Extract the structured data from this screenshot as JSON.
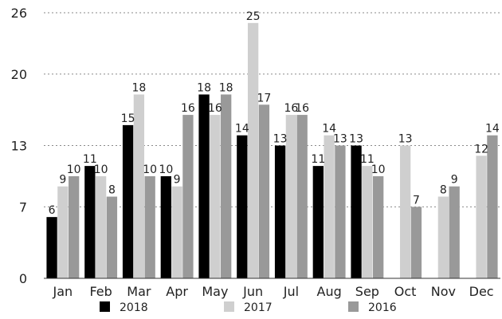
{
  "chart_data": {
    "type": "bar",
    "categories": [
      "Jan",
      "Feb",
      "Mar",
      "Apr",
      "May",
      "Jun",
      "Jul",
      "Aug",
      "Sep",
      "Oct",
      "Nov",
      "Dec"
    ],
    "series": [
      {
        "name": "2018",
        "color": "#000000",
        "values": [
          6,
          11,
          15,
          10,
          18,
          14,
          13,
          11,
          13,
          null,
          null,
          null
        ]
      },
      {
        "name": "2017",
        "color": "#cfcfcf",
        "values": [
          9,
          10,
          18,
          9,
          16,
          25,
          16,
          14,
          11,
          13,
          8,
          12
        ]
      },
      {
        "name": "2016",
        "color": "#999999",
        "values": [
          10,
          8,
          10,
          16,
          18,
          17,
          16,
          13,
          10,
          7,
          9,
          14
        ]
      }
    ],
    "y_ticks": [
      "0",
      "7",
      "13",
      "20",
      "26"
    ],
    "ylim": [
      0,
      26
    ],
    "grid": true,
    "legend": "bottom"
  }
}
